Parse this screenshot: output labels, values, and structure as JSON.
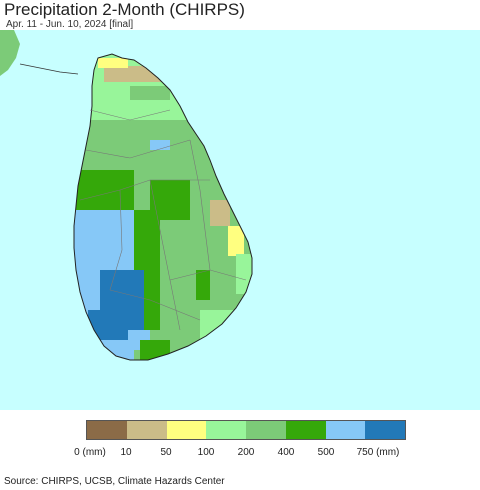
{
  "header": {
    "title": "Precipitation 2-Month (CHIRPS)",
    "subtitle": "Apr. 11 - Jun. 10, 2024 [final]"
  },
  "map": {
    "region": "Sri Lanka",
    "ocean_color": "#c7ffff",
    "boundary_color": "#555555"
  },
  "legend": {
    "colors": [
      "#8b6b47",
      "#cbbc88",
      "#ffff80",
      "#98f59a",
      "#7ccb78",
      "#35a80a",
      "#86c8f7",
      "#2279b8"
    ],
    "labels": [
      "0 (mm)",
      "10",
      "50",
      "100",
      "200",
      "400",
      "500",
      "750 (mm)"
    ]
  },
  "footer": {
    "source": "Source: CHIRPS, UCSB, Climate Hazards Center"
  }
}
